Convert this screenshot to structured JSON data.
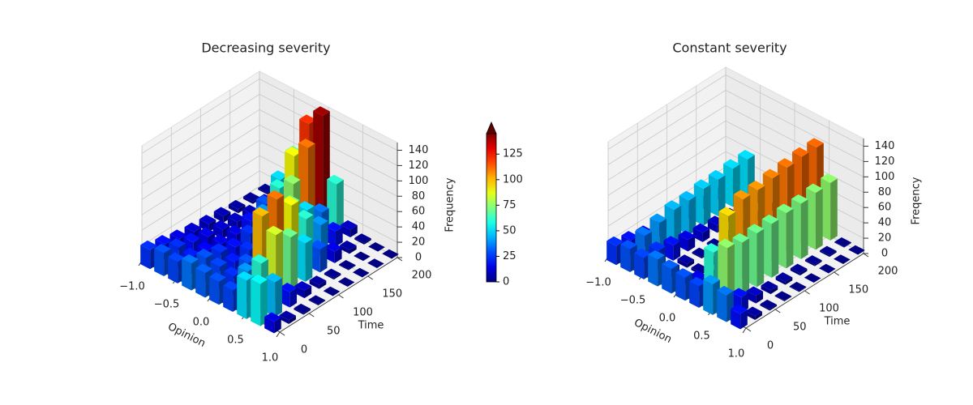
{
  "chart_data": [
    {
      "type": "bar3d",
      "title": "Decreasing severity",
      "xlabel": "Opinion",
      "ylabel": "Time",
      "zlabel": "Frequency",
      "colormap": "jet",
      "x": [
        -0.9,
        -0.7,
        -0.5,
        -0.3,
        -0.1,
        0.1,
        0.3,
        0.5,
        0.7,
        0.9
      ],
      "y": [
        0,
        25,
        50,
        75,
        100,
        125,
        150,
        175,
        200
      ],
      "values": [
        [
          25,
          30,
          28,
          35,
          32,
          30,
          28,
          50,
          55,
          15
        ],
        [
          20,
          25,
          22,
          30,
          28,
          25,
          40,
          60,
          45,
          5
        ],
        [
          15,
          20,
          18,
          25,
          22,
          30,
          100,
          85,
          20,
          2
        ],
        [
          12,
          15,
          15,
          20,
          25,
          40,
          110,
          70,
          10,
          1
        ],
        [
          10,
          12,
          15,
          25,
          35,
          60,
          90,
          50,
          5,
          0
        ],
        [
          8,
          10,
          20,
          40,
          55,
          70,
          60,
          30,
          2,
          0
        ],
        [
          5,
          8,
          30,
          60,
          75,
          50,
          40,
          15,
          1,
          0
        ],
        [
          3,
          10,
          50,
          90,
          110,
          35,
          20,
          5,
          0,
          0
        ],
        [
          2,
          15,
          70,
          120,
          140,
          60,
          10,
          2,
          0,
          0
        ]
      ],
      "xlim": [
        -1,
        1
      ],
      "ylim": [
        0,
        200
      ],
      "zlim": [
        0,
        150
      ],
      "xticks": [
        {
          "value": -1,
          "label": "−1.0"
        },
        {
          "value": -0.5,
          "label": "−0.5"
        },
        {
          "value": 0,
          "label": "0.0"
        },
        {
          "value": 0.5,
          "label": "0.5"
        },
        {
          "value": 1,
          "label": "1.0"
        }
      ],
      "yticks": [
        0,
        50,
        100,
        150,
        200
      ],
      "zticks": [
        0,
        20,
        40,
        60,
        80,
        100,
        120,
        140
      ],
      "colorbar": {
        "lim": [
          0,
          145
        ],
        "ticks": [
          0,
          25,
          50,
          75,
          100,
          125
        ]
      }
    },
    {
      "type": "bar3d",
      "title": "Constant severity",
      "xlabel": "Opinion",
      "ylabel": "Time",
      "zlabel": "Freqency",
      "colormap": "jet",
      "x": [
        -0.9,
        -0.7,
        -0.5,
        -0.3,
        -0.1,
        0.1,
        0.3,
        0.5,
        0.7,
        0.9
      ],
      "y": [
        0,
        25,
        50,
        75,
        100,
        125,
        150,
        175,
        200
      ],
      "values": [
        [
          25,
          30,
          28,
          35,
          32,
          30,
          28,
          40,
          35,
          20
        ],
        [
          20,
          35,
          25,
          10,
          8,
          15,
          60,
          75,
          20,
          5
        ],
        [
          15,
          40,
          20,
          5,
          3,
          5,
          95,
          70,
          10,
          2
        ],
        [
          10,
          45,
          15,
          2,
          1,
          2,
          105,
          70,
          5,
          1
        ],
        [
          8,
          45,
          12,
          2,
          1,
          1,
          105,
          70,
          4,
          1
        ],
        [
          8,
          48,
          10,
          1,
          1,
          1,
          108,
          72,
          3,
          0
        ],
        [
          6,
          48,
          8,
          1,
          0,
          1,
          110,
          72,
          2,
          0
        ],
        [
          5,
          50,
          6,
          1,
          0,
          0,
          112,
          74,
          2,
          0
        ],
        [
          5,
          50,
          5,
          0,
          0,
          0,
          112,
          75,
          1,
          0
        ]
      ],
      "xlim": [
        -1,
        1
      ],
      "ylim": [
        0,
        200
      ],
      "zlim": [
        0,
        150
      ],
      "xticks": [
        {
          "value": -1,
          "label": "−1.0"
        },
        {
          "value": -0.5,
          "label": "−0.5"
        },
        {
          "value": 0,
          "label": "0.0"
        },
        {
          "value": 0.5,
          "label": "0.5"
        },
        {
          "value": 1,
          "label": "1.0"
        }
      ],
      "yticks": [
        0,
        50,
        100,
        150,
        200
      ],
      "zticks": [
        0,
        20,
        40,
        60,
        80,
        100,
        120,
        140
      ]
    }
  ]
}
